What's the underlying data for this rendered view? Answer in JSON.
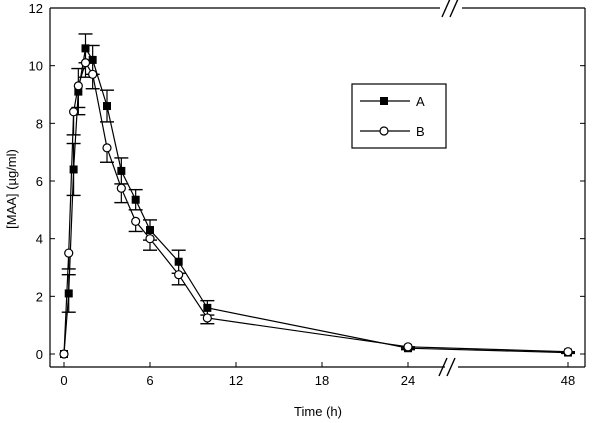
{
  "chart_data": {
    "type": "line",
    "xlabel": "Time (h)",
    "ylabel": "[MAA] (µg/ml)",
    "ylim": [
      0,
      12
    ],
    "x_ticks": [
      0,
      6,
      12,
      18,
      24,
      48
    ],
    "y_ticks": [
      0,
      2,
      4,
      6,
      8,
      10,
      12
    ],
    "x_axis_break": "between 24 and 48",
    "legend_position": "upper-right",
    "grid": false,
    "series": [
      {
        "name": "A",
        "marker": "filled-square",
        "points": [
          {
            "x": 0,
            "y": 0,
            "err": 0
          },
          {
            "x": 0.33,
            "y": 2.1,
            "err": 0.65
          },
          {
            "x": 0.67,
            "y": 6.4,
            "err": 0.9
          },
          {
            "x": 1,
            "y": 9.1,
            "err": 0.8
          },
          {
            "x": 1.5,
            "y": 10.6,
            "err": 0.5
          },
          {
            "x": 2,
            "y": 10.2,
            "err": 0.5
          },
          {
            "x": 3,
            "y": 8.6,
            "err": 0.55
          },
          {
            "x": 4,
            "y": 6.35,
            "err": 0.45
          },
          {
            "x": 5,
            "y": 5.35,
            "err": 0.35
          },
          {
            "x": 6,
            "y": 4.3,
            "err": 0.35
          },
          {
            "x": 8,
            "y": 3.2,
            "err": 0.4
          },
          {
            "x": 10,
            "y": 1.6,
            "err": 0.25
          },
          {
            "x": 24,
            "y": 0.2,
            "err": 0.05
          },
          {
            "x": 48,
            "y": 0.05,
            "err": 0.03
          }
        ]
      },
      {
        "name": "B",
        "marker": "open-circle",
        "points": [
          {
            "x": 0,
            "y": 0,
            "err": 0
          },
          {
            "x": 0.33,
            "y": 3.5,
            "err": 0.55
          },
          {
            "x": 0.67,
            "y": 8.4,
            "err": 0.8
          },
          {
            "x": 1,
            "y": 9.3,
            "err": 0.75
          },
          {
            "x": 1.5,
            "y": 10.1,
            "err": 0.5
          },
          {
            "x": 2,
            "y": 9.7,
            "err": 0.5
          },
          {
            "x": 3,
            "y": 7.15,
            "err": 0.5
          },
          {
            "x": 4,
            "y": 5.75,
            "err": 0.5
          },
          {
            "x": 5,
            "y": 4.6,
            "err": 0.35
          },
          {
            "x": 6,
            "y": 4.0,
            "err": 0.4
          },
          {
            "x": 8,
            "y": 2.75,
            "err": 0.35
          },
          {
            "x": 10,
            "y": 1.25,
            "err": 0.2
          },
          {
            "x": 24,
            "y": 0.25,
            "err": 0.05
          },
          {
            "x": 48,
            "y": 0.08,
            "err": 0.03
          }
        ]
      }
    ]
  }
}
